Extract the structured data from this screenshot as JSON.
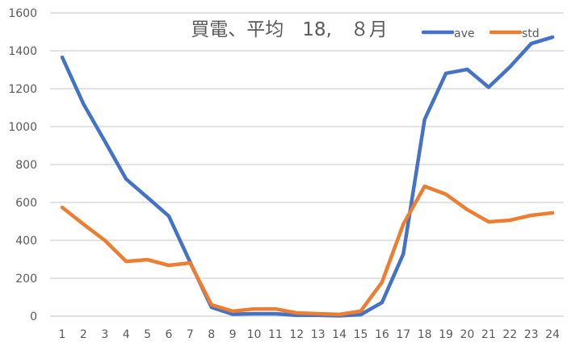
{
  "chart_data": {
    "type": "line",
    "title": "買電、平均　18,　８月",
    "xlabel": "",
    "ylabel": "",
    "categories": [
      "1",
      "2",
      "3",
      "4",
      "5",
      "6",
      "7",
      "8",
      "9",
      "10",
      "11",
      "12",
      "13",
      "14",
      "15",
      "16",
      "17",
      "18",
      "19",
      "20",
      "21",
      "22",
      "23",
      "24"
    ],
    "ylim": [
      0,
      1600
    ],
    "yticks": [
      "0",
      "200",
      "400",
      "600",
      "800",
      "1000",
      "1200",
      "1400",
      "1600"
    ],
    "grid": true,
    "legend": "top-right",
    "series": [
      {
        "name": "ave",
        "color": "#4472C4",
        "values": [
          1366,
          1119,
          923,
          723,
          626,
          528,
          285,
          47,
          10,
          13,
          13,
          5,
          5,
          2,
          8,
          72,
          328,
          1038,
          1281,
          1302,
          1208,
          1315,
          1438,
          1472
        ]
      },
      {
        "name": "std",
        "color": "#ED7D31",
        "values": [
          574,
          485,
          400,
          289,
          298,
          268,
          281,
          60,
          26,
          38,
          38,
          17,
          13,
          9,
          26,
          179,
          485,
          685,
          643,
          562,
          498,
          506,
          532,
          545
        ]
      }
    ]
  }
}
